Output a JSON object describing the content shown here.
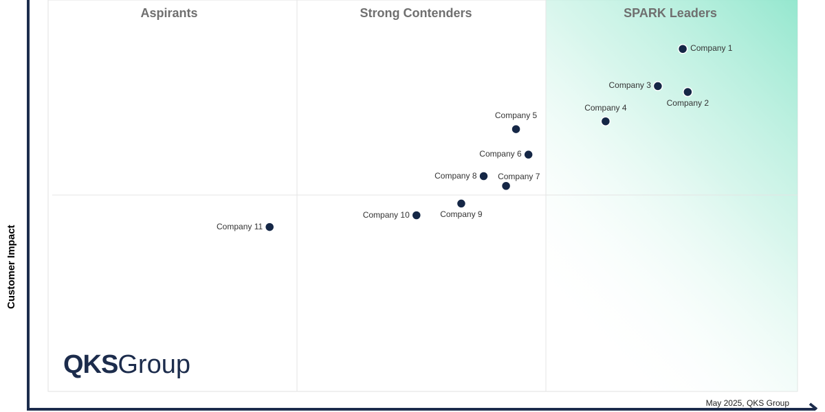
{
  "quadrants": {
    "aspirants": "Aspirants",
    "strong_contenders": "Strong Contenders",
    "leaders": "SPARK Leaders"
  },
  "axes": {
    "y_label": "Customer Impact",
    "x_label": ""
  },
  "logo": {
    "strong": "QKS",
    "light": "Group"
  },
  "footer": "May 2025, QKS Group",
  "colors": {
    "point": "#152746",
    "axis": "#1c2c4c",
    "leader_gradient": "#8fe6cc",
    "quadrant_title": "#6f6f6f",
    "grid": "#e4e4e4"
  },
  "chart_data": {
    "type": "scatter",
    "title": "",
    "xlabel": "",
    "ylabel": "Customer Impact",
    "xlim": [
      0,
      3
    ],
    "ylim": [
      0,
      2
    ],
    "grid": true,
    "points": [
      {
        "name": "Company 1",
        "x": 2.55,
        "y": 1.75,
        "label_side": "right"
      },
      {
        "name": "Company 2",
        "x": 2.57,
        "y": 1.53,
        "label_side": "below"
      },
      {
        "name": "Company 3",
        "x": 2.45,
        "y": 1.56,
        "label_side": "left"
      },
      {
        "name": "Company 4",
        "x": 2.24,
        "y": 1.38,
        "label_side": "above"
      },
      {
        "name": "Company 5",
        "x": 1.88,
        "y": 1.34,
        "label_side": "above"
      },
      {
        "name": "Company 6",
        "x": 1.93,
        "y": 1.21,
        "label_side": "left"
      },
      {
        "name": "Company 7",
        "x": 1.84,
        "y": 1.05,
        "label_side": "above-right"
      },
      {
        "name": "Company 8",
        "x": 1.75,
        "y": 1.1,
        "label_side": "left"
      },
      {
        "name": "Company 9",
        "x": 1.66,
        "y": 0.96,
        "label_side": "below"
      },
      {
        "name": "Company 10",
        "x": 1.48,
        "y": 0.9,
        "label_side": "left"
      },
      {
        "name": "Company 11",
        "x": 0.89,
        "y": 0.84,
        "label_side": "left"
      }
    ]
  }
}
